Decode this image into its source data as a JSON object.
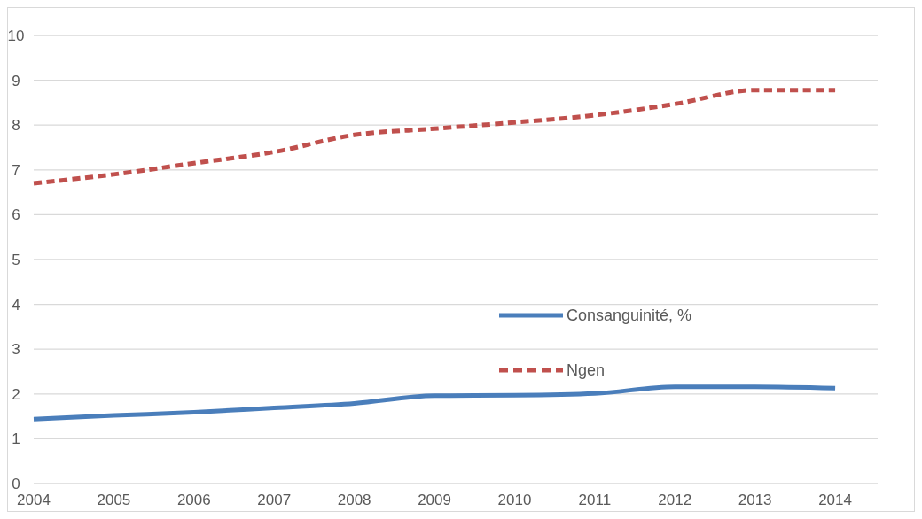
{
  "chart_data": {
    "type": "line",
    "categories": [
      "2004",
      "2005",
      "2006",
      "2007",
      "2008",
      "2009",
      "2010",
      "2011",
      "2012",
      "2013",
      "2014"
    ],
    "series": [
      {
        "name": "Consanguinité, %",
        "color": "#4a7ebb",
        "line_style": "solid",
        "values": [
          1.44,
          1.52,
          1.59,
          1.69,
          1.79,
          1.96,
          1.97,
          2.01,
          2.16,
          2.16,
          2.13
        ]
      },
      {
        "name": "Ngen",
        "color": "#c0504d",
        "line_style": "dashed",
        "values": [
          6.7,
          6.9,
          7.15,
          7.4,
          7.78,
          7.92,
          8.06,
          8.22,
          8.47,
          8.78,
          8.78
        ]
      }
    ],
    "ylim": [
      0,
      10
    ],
    "yticks": [
      0,
      1,
      2,
      3,
      4,
      5,
      6,
      7,
      8,
      9,
      10
    ],
    "grid": "y",
    "legend": "right"
  }
}
